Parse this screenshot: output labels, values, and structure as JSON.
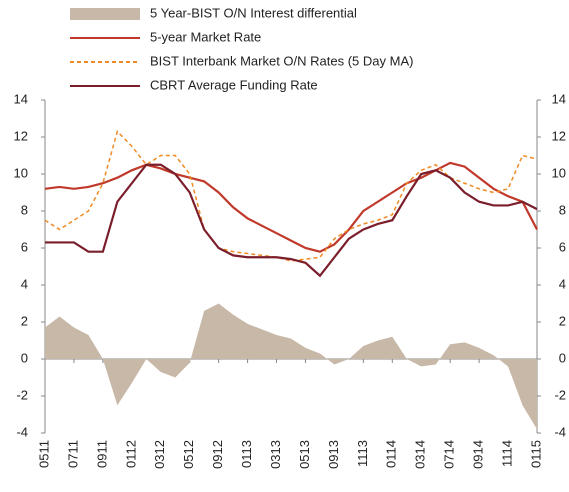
{
  "chart_data": {
    "type": "line",
    "categories": [
      "0511",
      null,
      "0711",
      null,
      "0911",
      null,
      "0112",
      null,
      "0312",
      null,
      "0512",
      null,
      "0912",
      null,
      "0113",
      null,
      "0313",
      null,
      "0513",
      null,
      "0913",
      null,
      "1113",
      null,
      "0114",
      null,
      "0314",
      null,
      "0714",
      null,
      "0914",
      null,
      "1114",
      null,
      "0115"
    ],
    "series": [
      {
        "name": "5 Year-BIST O/N Interest differential",
        "kind": "area",
        "color": "#c8b8a8",
        "values": [
          1.7,
          2.3,
          1.7,
          1.3,
          0,
          -2.5,
          -1.3,
          0,
          -0.7,
          -1,
          -0.2,
          2.6,
          3.0,
          2.4,
          1.9,
          1.6,
          1.3,
          1.1,
          0.6,
          0.3,
          -0.3,
          0,
          0.7,
          1.0,
          1.2,
          0,
          -0.4,
          -0.3,
          0.8,
          0.9,
          0.6,
          0.2,
          -0.4,
          -2.5,
          -3.8
        ]
      },
      {
        "name": "5-year Market Rate",
        "kind": "solid",
        "color": "#c0392b",
        "values": [
          9.2,
          9.3,
          9.2,
          9.3,
          9.5,
          9.8,
          10.2,
          10.5,
          10.3,
          10.0,
          9.8,
          9.6,
          9.0,
          8.2,
          7.6,
          7.2,
          6.8,
          6.4,
          6.0,
          5.8,
          6.2,
          7.0,
          8.0,
          8.5,
          9.0,
          9.5,
          9.8,
          10.2,
          10.6,
          10.4,
          9.8,
          9.2,
          8.8,
          8.5,
          7.0
        ]
      },
      {
        "name": "BIST Interbank Market O/N Rates (5 Day MA)",
        "kind": "dashed",
        "color": "#f08a24",
        "values": [
          7.5,
          7.0,
          7.5,
          8.0,
          9.5,
          12.3,
          11.5,
          10.5,
          11.0,
          11.0,
          10.0,
          7.0,
          6.0,
          5.8,
          5.7,
          5.6,
          5.5,
          5.3,
          5.4,
          5.5,
          6.5,
          7.0,
          7.3,
          7.5,
          7.8,
          9.5,
          10.2,
          10.5,
          9.8,
          9.5,
          9.2,
          9.0,
          9.2,
          11.0,
          10.8
        ]
      },
      {
        "name": "CBRT Average Funding Rate",
        "kind": "solid",
        "color": "#7b1e2b",
        "values": [
          6.3,
          6.3,
          6.3,
          5.8,
          5.8,
          8.5,
          9.5,
          10.5,
          10.5,
          10.0,
          9.0,
          7.0,
          6.0,
          5.6,
          5.5,
          5.5,
          5.5,
          5.4,
          5.2,
          4.5,
          5.5,
          6.5,
          7.0,
          7.3,
          7.5,
          8.8,
          10.0,
          10.2,
          9.8,
          9.0,
          8.5,
          8.3,
          8.3,
          8.5,
          8.1
        ]
      }
    ],
    "ylim": [
      -4,
      14
    ],
    "yticks": [
      -4,
      -2,
      0,
      2,
      4,
      6,
      8,
      10,
      12,
      14
    ],
    "y2lim": [
      -4,
      14
    ],
    "y2ticks": [
      -4,
      -2,
      0,
      2,
      4,
      6,
      8,
      10,
      12,
      14
    ]
  }
}
